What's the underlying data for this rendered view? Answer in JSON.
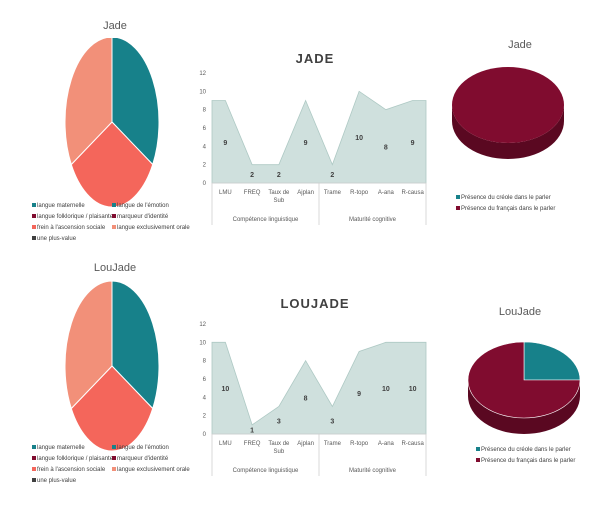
{
  "colors": {
    "teal": "#17818a",
    "coral": "#f4665b",
    "salmon": "#f29079",
    "maroon": "#800c2f",
    "area_fill": "#cfe0dd",
    "area_line": "#aec9c4"
  },
  "pie_legend_items": [
    {
      "label": "langue maternelle",
      "color": "#17818a"
    },
    {
      "label": "langue de l'émotion",
      "color": "#17818a"
    },
    {
      "label": "langue folklorique / plaisante",
      "color": "#800c2f"
    },
    {
      "label": "marqueur d'identité",
      "color": "#800c2f"
    },
    {
      "label": "frein à l'ascension sociale",
      "color": "#f4665b"
    },
    {
      "label": "langue exclusivement orale",
      "color": "#f29079"
    },
    {
      "label": "une plus-value",
      "color": "#404040"
    }
  ],
  "presence_legend_items": [
    {
      "label": "Présence du créole dans le parler",
      "color": "#17818a"
    },
    {
      "label": "Présence du français dans le parler",
      "color": "#800c2f"
    }
  ],
  "chart_data": [
    {
      "type": "pie",
      "title": "Jade",
      "slices": [
        {
          "label": "langue maternelle",
          "value": 33.3,
          "color": "#17818a"
        },
        {
          "label": "frein à l'ascension sociale",
          "value": 33.3,
          "color": "#f4665b"
        },
        {
          "label": "langue exclusivement orale",
          "value": 33.3,
          "color": "#f29079"
        }
      ]
    },
    {
      "type": "area",
      "title": "JADE",
      "categories": [
        "LMU",
        "FREQ",
        "Taux de Sub",
        "Ajplan",
        "Trame",
        "R-topo",
        "A-ana",
        "R-causa"
      ],
      "groups": [
        {
          "label": "Compétence linguistique",
          "count": 4
        },
        {
          "label": "Maturité cognitive",
          "count": 4
        }
      ],
      "values": [
        9,
        2,
        2,
        9,
        2,
        10,
        8,
        9
      ],
      "ylim": [
        0,
        12
      ],
      "yticks": [
        0,
        2,
        4,
        6,
        8,
        10,
        12
      ]
    },
    {
      "type": "pie",
      "title": "Jade",
      "slices": [
        {
          "label": "Présence du créole dans le parler",
          "value": 0,
          "color": "#17818a"
        },
        {
          "label": "Présence du français dans le parler",
          "value": 100,
          "color": "#800c2f"
        }
      ]
    },
    {
      "type": "pie",
      "title": "LouJade",
      "slices": [
        {
          "label": "langue maternelle",
          "value": 33.3,
          "color": "#17818a"
        },
        {
          "label": "frein à l'ascension sociale",
          "value": 33.3,
          "color": "#f4665b"
        },
        {
          "label": "langue exclusivement orale",
          "value": 33.3,
          "color": "#f29079"
        }
      ]
    },
    {
      "type": "area",
      "title": "LOUJADE",
      "categories": [
        "LMU",
        "FREQ",
        "Taux de Sub",
        "Ajplan",
        "Trame",
        "R-topo",
        "A-ana",
        "R-causa"
      ],
      "groups": [
        {
          "label": "Compétence linguistique",
          "count": 4
        },
        {
          "label": "Maturité cognitive",
          "count": 4
        }
      ],
      "values": [
        10,
        1,
        3,
        8,
        3,
        9,
        10,
        10
      ],
      "ylim": [
        0,
        12
      ],
      "yticks": [
        0,
        2,
        4,
        6,
        8,
        10,
        12
      ]
    },
    {
      "type": "pie",
      "title": "LouJade",
      "slices": [
        {
          "label": "Présence du créole dans le parler",
          "value": 25,
          "color": "#17818a"
        },
        {
          "label": "Présence du français dans le parler",
          "value": 75,
          "color": "#800c2f"
        }
      ]
    }
  ]
}
